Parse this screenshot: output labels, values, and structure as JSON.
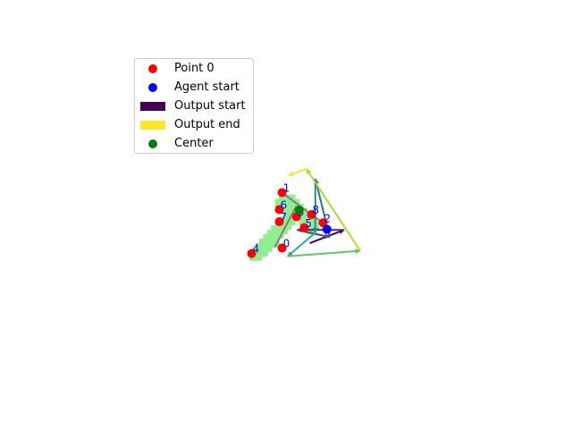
{
  "chart_data": {
    "type": "scatter",
    "title": "",
    "xlabel": "",
    "ylabel": "",
    "axes_visible": false,
    "xlim": [
      -4,
      4
    ],
    "ylim": [
      -3,
      3
    ],
    "legend": {
      "placement": "upper-left",
      "entries": [
        {
          "label": "Point 0",
          "kind": "dot",
          "color": "#ff0000"
        },
        {
          "label": "Agent start",
          "kind": "dot",
          "color": "#0000ff"
        },
        {
          "label": "Output start",
          "kind": "patch",
          "color": "#440154"
        },
        {
          "label": "Output end",
          "kind": "patch",
          "color": "#fde725"
        },
        {
          "label": "Center",
          "kind": "dot",
          "color": "#008000"
        }
      ]
    },
    "shape_cells": [
      [
        -0.18,
        0.32
      ],
      [
        -0.11,
        0.32
      ],
      [
        -0.04,
        0.32
      ],
      [
        -0.25,
        0.24
      ],
      [
        -0.18,
        0.24
      ],
      [
        -0.11,
        0.24
      ],
      [
        -0.04,
        0.24
      ],
      [
        0.04,
        0.24
      ],
      [
        -0.18,
        0.16
      ],
      [
        -0.11,
        0.16
      ],
      [
        -0.04,
        0.16
      ],
      [
        0.04,
        0.16
      ],
      [
        0.11,
        0.16
      ],
      [
        -0.04,
        0.08
      ],
      [
        0.04,
        0.08
      ],
      [
        0.11,
        0.08
      ],
      [
        0.18,
        0.08
      ],
      [
        -0.11,
        0.0
      ],
      [
        -0.04,
        0.0
      ],
      [
        0.04,
        0.0
      ],
      [
        0.11,
        0.0
      ],
      [
        0.18,
        0.0
      ],
      [
        0.25,
        0.0
      ],
      [
        -0.18,
        -0.08
      ],
      [
        -0.11,
        -0.08
      ],
      [
        -0.04,
        -0.08
      ],
      [
        0.18,
        -0.08
      ],
      [
        0.25,
        -0.08
      ],
      [
        0.32,
        -0.08
      ],
      [
        -0.25,
        -0.16
      ],
      [
        -0.18,
        -0.16
      ],
      [
        -0.11,
        -0.16
      ],
      [
        0.25,
        -0.16
      ],
      [
        0.32,
        -0.16
      ],
      [
        0.39,
        -0.16
      ],
      [
        -0.32,
        -0.24
      ],
      [
        -0.25,
        -0.24
      ],
      [
        -0.18,
        -0.24
      ],
      [
        0.32,
        -0.24
      ],
      [
        -0.39,
        -0.32
      ],
      [
        -0.32,
        -0.32
      ],
      [
        -0.25,
        -0.32
      ],
      [
        -0.46,
        -0.4
      ],
      [
        -0.39,
        -0.4
      ],
      [
        -0.32,
        -0.4
      ],
      [
        -0.53,
        -0.48
      ],
      [
        -0.46,
        -0.48
      ],
      [
        -0.39,
        -0.48
      ],
      [
        -0.32,
        -0.48
      ],
      [
        -0.6,
        -0.56
      ],
      [
        -0.53,
        -0.56
      ],
      [
        -0.46,
        -0.56
      ],
      [
        -0.67,
        -0.64
      ],
      [
        -0.6,
        -0.64
      ],
      [
        -0.53,
        -0.64
      ],
      [
        -0.71,
        -0.72
      ],
      [
        -0.64,
        -0.72
      ]
    ],
    "skeleton": [
      [
        [
          -0.2,
          0.44
        ],
        [
          0.34,
          0.03
        ],
        [
          0.54,
          -0.11
        ]
      ],
      [
        [
          0.06,
          0.2
        ],
        [
          -0.33,
          -0.55
        ]
      ]
    ],
    "points": [
      {
        "label": "0",
        "x": -0.2,
        "y": -0.57
      },
      {
        "label": "1",
        "x": -0.2,
        "y": 0.44
      },
      {
        "label": "2",
        "x": 0.54,
        "y": -0.11
      },
      {
        "label": "3",
        "x": 0.06,
        "y": 0.0
      },
      {
        "label": "4",
        "x": -0.75,
        "y": -0.67
      },
      {
        "label": "5",
        "x": 0.2,
        "y": -0.2
      },
      {
        "label": "6",
        "x": -0.25,
        "y": 0.13
      },
      {
        "label": "7",
        "x": -0.25,
        "y": -0.09
      },
      {
        "label": "8",
        "x": 0.33,
        "y": 0.04
      }
    ],
    "center": {
      "x": 0.11,
      "y": 0.12
    },
    "agent_start": {
      "x": 0.61,
      "y": -0.23
    },
    "trajectory": {
      "colormap": "viridis",
      "points": [
        [
          0.3,
          -0.48
        ],
        [
          0.92,
          -0.24
        ],
        [
          0.07,
          -0.24
        ],
        [
          0.66,
          -0.37
        ],
        [
          0.4,
          0.69
        ],
        [
          0.4,
          -0.29
        ],
        [
          -0.1,
          -0.72
        ],
        [
          1.21,
          -0.62
        ],
        [
          0.24,
          0.87
        ],
        [
          -0.08,
          0.75
        ]
      ]
    }
  }
}
